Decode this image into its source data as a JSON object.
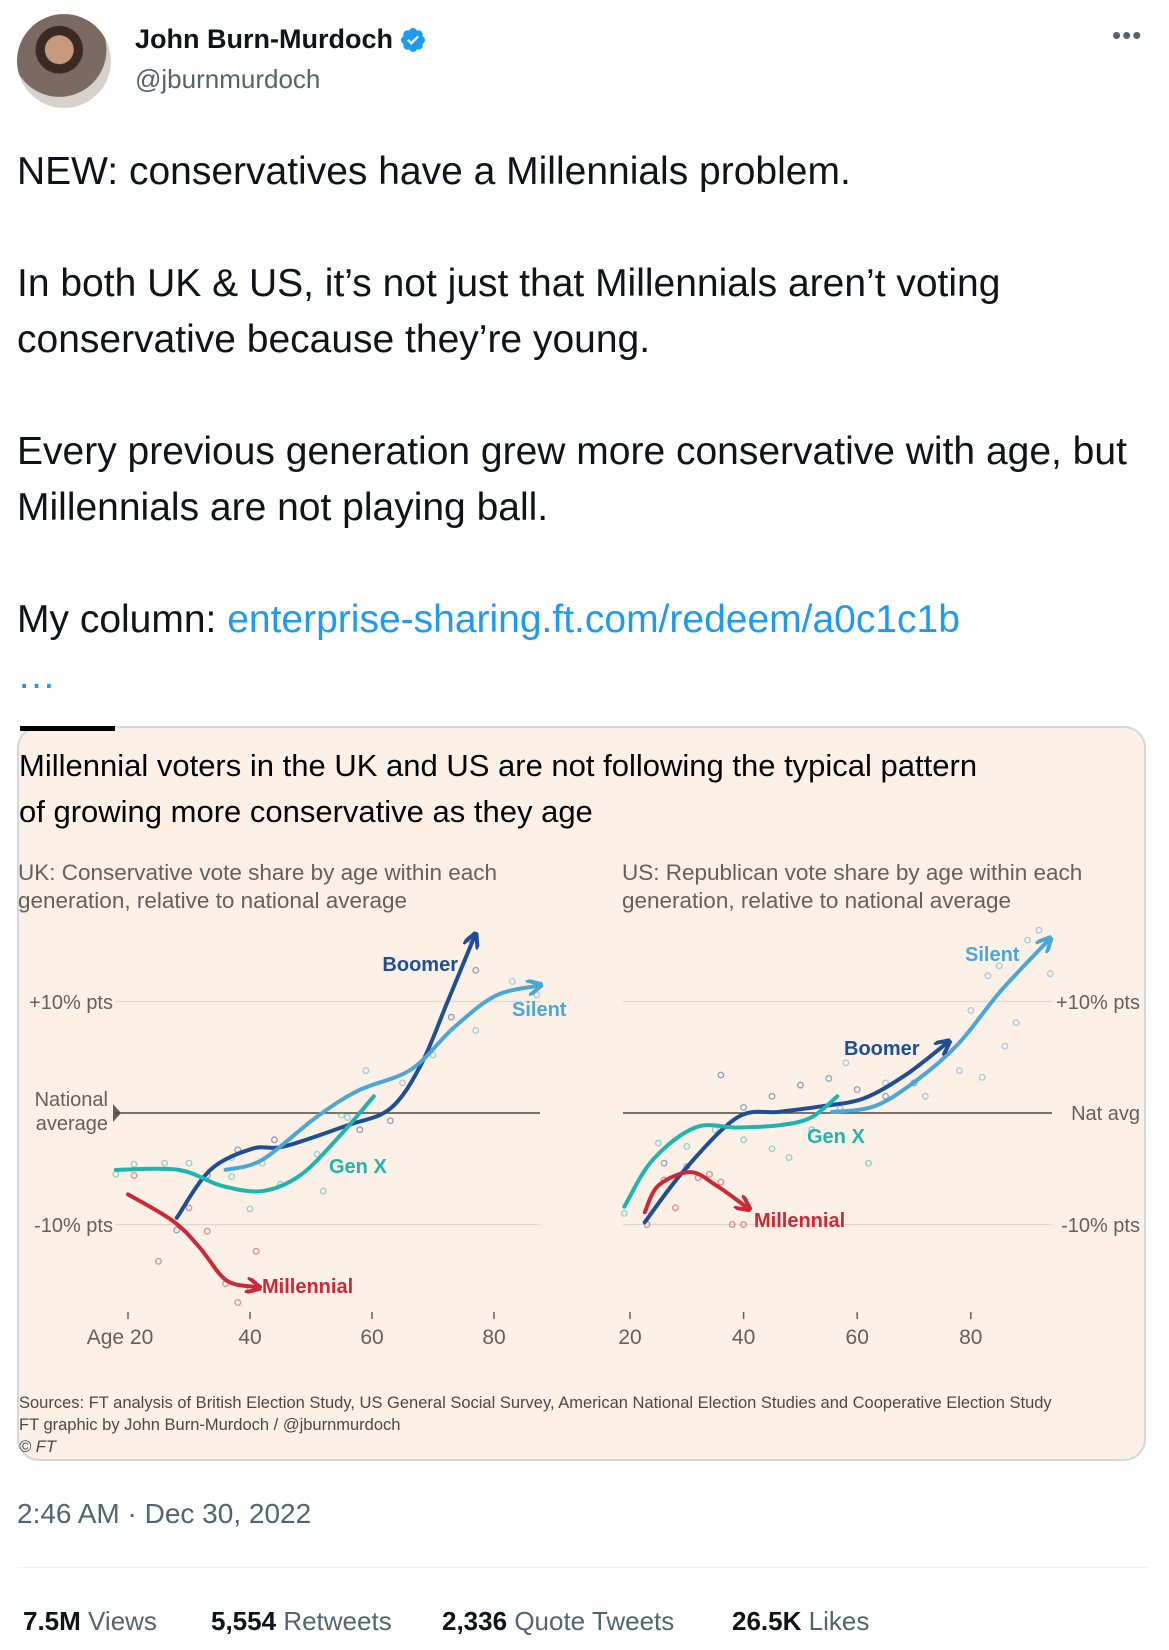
{
  "header": {
    "name": "John Burn-Murdoch",
    "handle": "@jburnmurdoch",
    "verified_icon": "verified-badge-icon",
    "more_icon": "more-dots-icon"
  },
  "tweet": {
    "text": "NEW: conservatives have a Millennials problem.\n\nIn both UK & US, it’s not just that Millennials aren’t voting conservative because they’re young.\n\nEvery previous generation grew more conservative with age, but Millennials are not playing ball.\n\nMy column: ",
    "link": "enterprise-sharing.ft.com/redeem/a0c1c1b",
    "link_ellipsis": "…"
  },
  "card": {
    "title_line1": "Millennial voters in the UK and US are not following the typical pattern",
    "title_line2": "of growing more conservative as they age",
    "sources": "Sources: FT analysis of British Election Study, US General Social Survey, American National Election Studies and Cooperative Election Study",
    "credit": "FT graphic by John Burn-Murdoch / @jburnmurdoch",
    "copyright": "© FT",
    "background": "#fdf0e6"
  },
  "chart_data": [
    {
      "type": "line",
      "subtitle_line1": "UK: Conservative vote share by age within each",
      "subtitle_line2": "generation, relative to national average",
      "xlabel": "",
      "x_ticks": [
        "Age 20",
        "40",
        "60",
        "80"
      ],
      "x_tick_values": [
        20,
        40,
        60,
        80
      ],
      "xlim": [
        17,
        90
      ],
      "y_ticks": [
        "+10% pts",
        "-10% pts"
      ],
      "y_tick_values": [
        10,
        -10
      ],
      "baseline_label": "National average",
      "ylim": [
        -17,
        17
      ],
      "grid": true,
      "series": [
        {
          "name": "Boomer",
          "color": "#1e4f96",
          "x": [
            28,
            33.5,
            40.4,
            45.6,
            56,
            63,
            68,
            72.4,
            76.7
          ],
          "y": [
            -9.4,
            -5.1,
            -3.2,
            -3.0,
            -1.1,
            0.4,
            4.3,
            10,
            15.7
          ]
        },
        {
          "name": "Silent",
          "color": "#4aa8d8",
          "x": [
            36,
            42,
            50.8,
            57.7,
            66.4,
            73.3,
            80.2,
            87
          ],
          "y": [
            -5.1,
            -4.2,
            -0.4,
            2,
            3.9,
            7.6,
            10.5,
            11.4
          ]
        },
        {
          "name": "Gen X",
          "color": "#1fb5ac",
          "x": [
            18,
            28.3,
            35.2,
            42,
            48.2,
            54.3,
            60.3
          ],
          "y": [
            -5.1,
            -5.1,
            -6.5,
            -7,
            -5.6,
            -2.3,
            1.5
          ]
        },
        {
          "name": "Millennial",
          "color": "#cc2936",
          "x": [
            20,
            27.4,
            31.8,
            36.1,
            40.9
          ],
          "y": [
            -7.3,
            -9.7,
            -12.1,
            -15,
            -15.6
          ]
        }
      ],
      "points": [
        {
          "series": "Boomer",
          "x": [
            28,
            33,
            38,
            44,
            58,
            63,
            73,
            76,
            77
          ],
          "y": [
            -10.5,
            -5.6,
            -3.3,
            -2.4,
            -1.5,
            -0.7,
            8.6,
            15.6,
            12.8
          ]
        },
        {
          "series": "Silent",
          "x": [
            37,
            42,
            51,
            56,
            59,
            65,
            70,
            77,
            83,
            87
          ],
          "y": [
            -4,
            -4.5,
            -3.7,
            -0.4,
            3.8,
            2.7,
            5.2,
            7.4,
            11.8,
            10.6
          ]
        },
        {
          "series": "Gen X",
          "x": [
            18,
            21,
            26,
            30,
            37,
            40,
            45,
            52,
            55
          ],
          "y": [
            -5.5,
            -4.6,
            -4.5,
            -4.5,
            -5.7,
            -8.6,
            -6.4,
            -7,
            -0.2
          ]
        },
        {
          "series": "Millennial",
          "x": [
            21,
            25,
            30,
            33,
            36,
            40,
            41,
            38
          ],
          "y": [
            -5.6,
            -13.3,
            -8.5,
            -10.6,
            -15.3,
            -15.8,
            -12.4,
            -17
          ]
        }
      ]
    },
    {
      "type": "line",
      "subtitle_line1": "US: Republican vote share by age within each",
      "subtitle_line2": "generation, relative to national average",
      "xlabel": "",
      "x_ticks": [
        "20",
        "40",
        "60",
        "80"
      ],
      "x_tick_values": [
        20,
        40,
        60,
        80
      ],
      "xlim": [
        19,
        96
      ],
      "y_ticks": [
        "+10% pts",
        "-10% pts"
      ],
      "y_tick_values": [
        10,
        -10
      ],
      "baseline_label": "Nat avg",
      "ylim": [
        -17,
        17
      ],
      "grid": true,
      "series": [
        {
          "name": "Silent",
          "color": "#4aa8d8",
          "x": [
            55.6,
            63,
            70.4,
            77.8,
            85.2,
            93.5
          ],
          "y": [
            0.1,
            0.6,
            2.9,
            6.2,
            10.9,
            15.4
          ]
        },
        {
          "name": "Boomer",
          "color": "#1e4f96",
          "x": [
            22.6,
            29.6,
            38.9,
            46.3,
            53.7,
            61.1,
            68.5,
            75.6
          ],
          "y": [
            -9.8,
            -5.1,
            -0.4,
            0.1,
            0.6,
            1.3,
            3.4,
            6.2
          ]
        },
        {
          "name": "Gen X",
          "color": "#1fb5ac",
          "x": [
            19,
            24,
            31.5,
            38.9,
            46.3,
            51.9,
            56.5
          ],
          "y": [
            -8.4,
            -4.2,
            -1.3,
            -1.3,
            -1.1,
            -0.4,
            1.5
          ]
        },
        {
          "name": "Millennial",
          "color": "#cc2936",
          "x": [
            22.6,
            25,
            30.6,
            35.2,
            40.4
          ],
          "y": [
            -8.9,
            -6.5,
            -5.3,
            -6.5,
            -8.4
          ]
        }
      ],
      "points": [
        {
          "series": "Silent",
          "x": [
            58,
            65,
            72,
            78,
            80,
            83,
            85,
            88,
            90,
            92,
            94,
            86,
            82
          ],
          "y": [
            4.5,
            2.7,
            1.5,
            3.8,
            9.2,
            12.3,
            13.2,
            8.1,
            15.5,
            16.4,
            12.5,
            6,
            3.2
          ]
        },
        {
          "series": "Boomer",
          "x": [
            26,
            30,
            36,
            40,
            45,
            50,
            55,
            60,
            65,
            70
          ],
          "y": [
            -4.5,
            -4.8,
            3.4,
            0.5,
            1.5,
            2.5,
            3.1,
            2.1,
            1.5,
            2.7
          ]
        },
        {
          "series": "Gen X",
          "x": [
            19,
            25,
            30,
            35,
            40,
            45,
            48,
            52,
            57,
            62
          ],
          "y": [
            -9,
            -2.7,
            -3,
            -1.5,
            -2.4,
            -3.2,
            -4,
            -1.5,
            0.4,
            -4.5
          ]
        },
        {
          "series": "Millennial",
          "x": [
            23,
            26,
            28,
            32,
            34,
            36,
            38,
            40
          ],
          "y": [
            -10,
            -6,
            -8.5,
            -5.8,
            -5.5,
            -6.2,
            -10,
            -10
          ]
        }
      ]
    }
  ],
  "footer": {
    "timestamp": "2:46 AM · Dec 30, 2022",
    "views_count": "7.5M",
    "views_label": "Views",
    "retweets_count": "5,554",
    "retweets_label": "Retweets",
    "quotes_count": "2,336",
    "quotes_label": "Quote Tweets",
    "likes_count": "26.5K",
    "likes_label": "Likes"
  }
}
